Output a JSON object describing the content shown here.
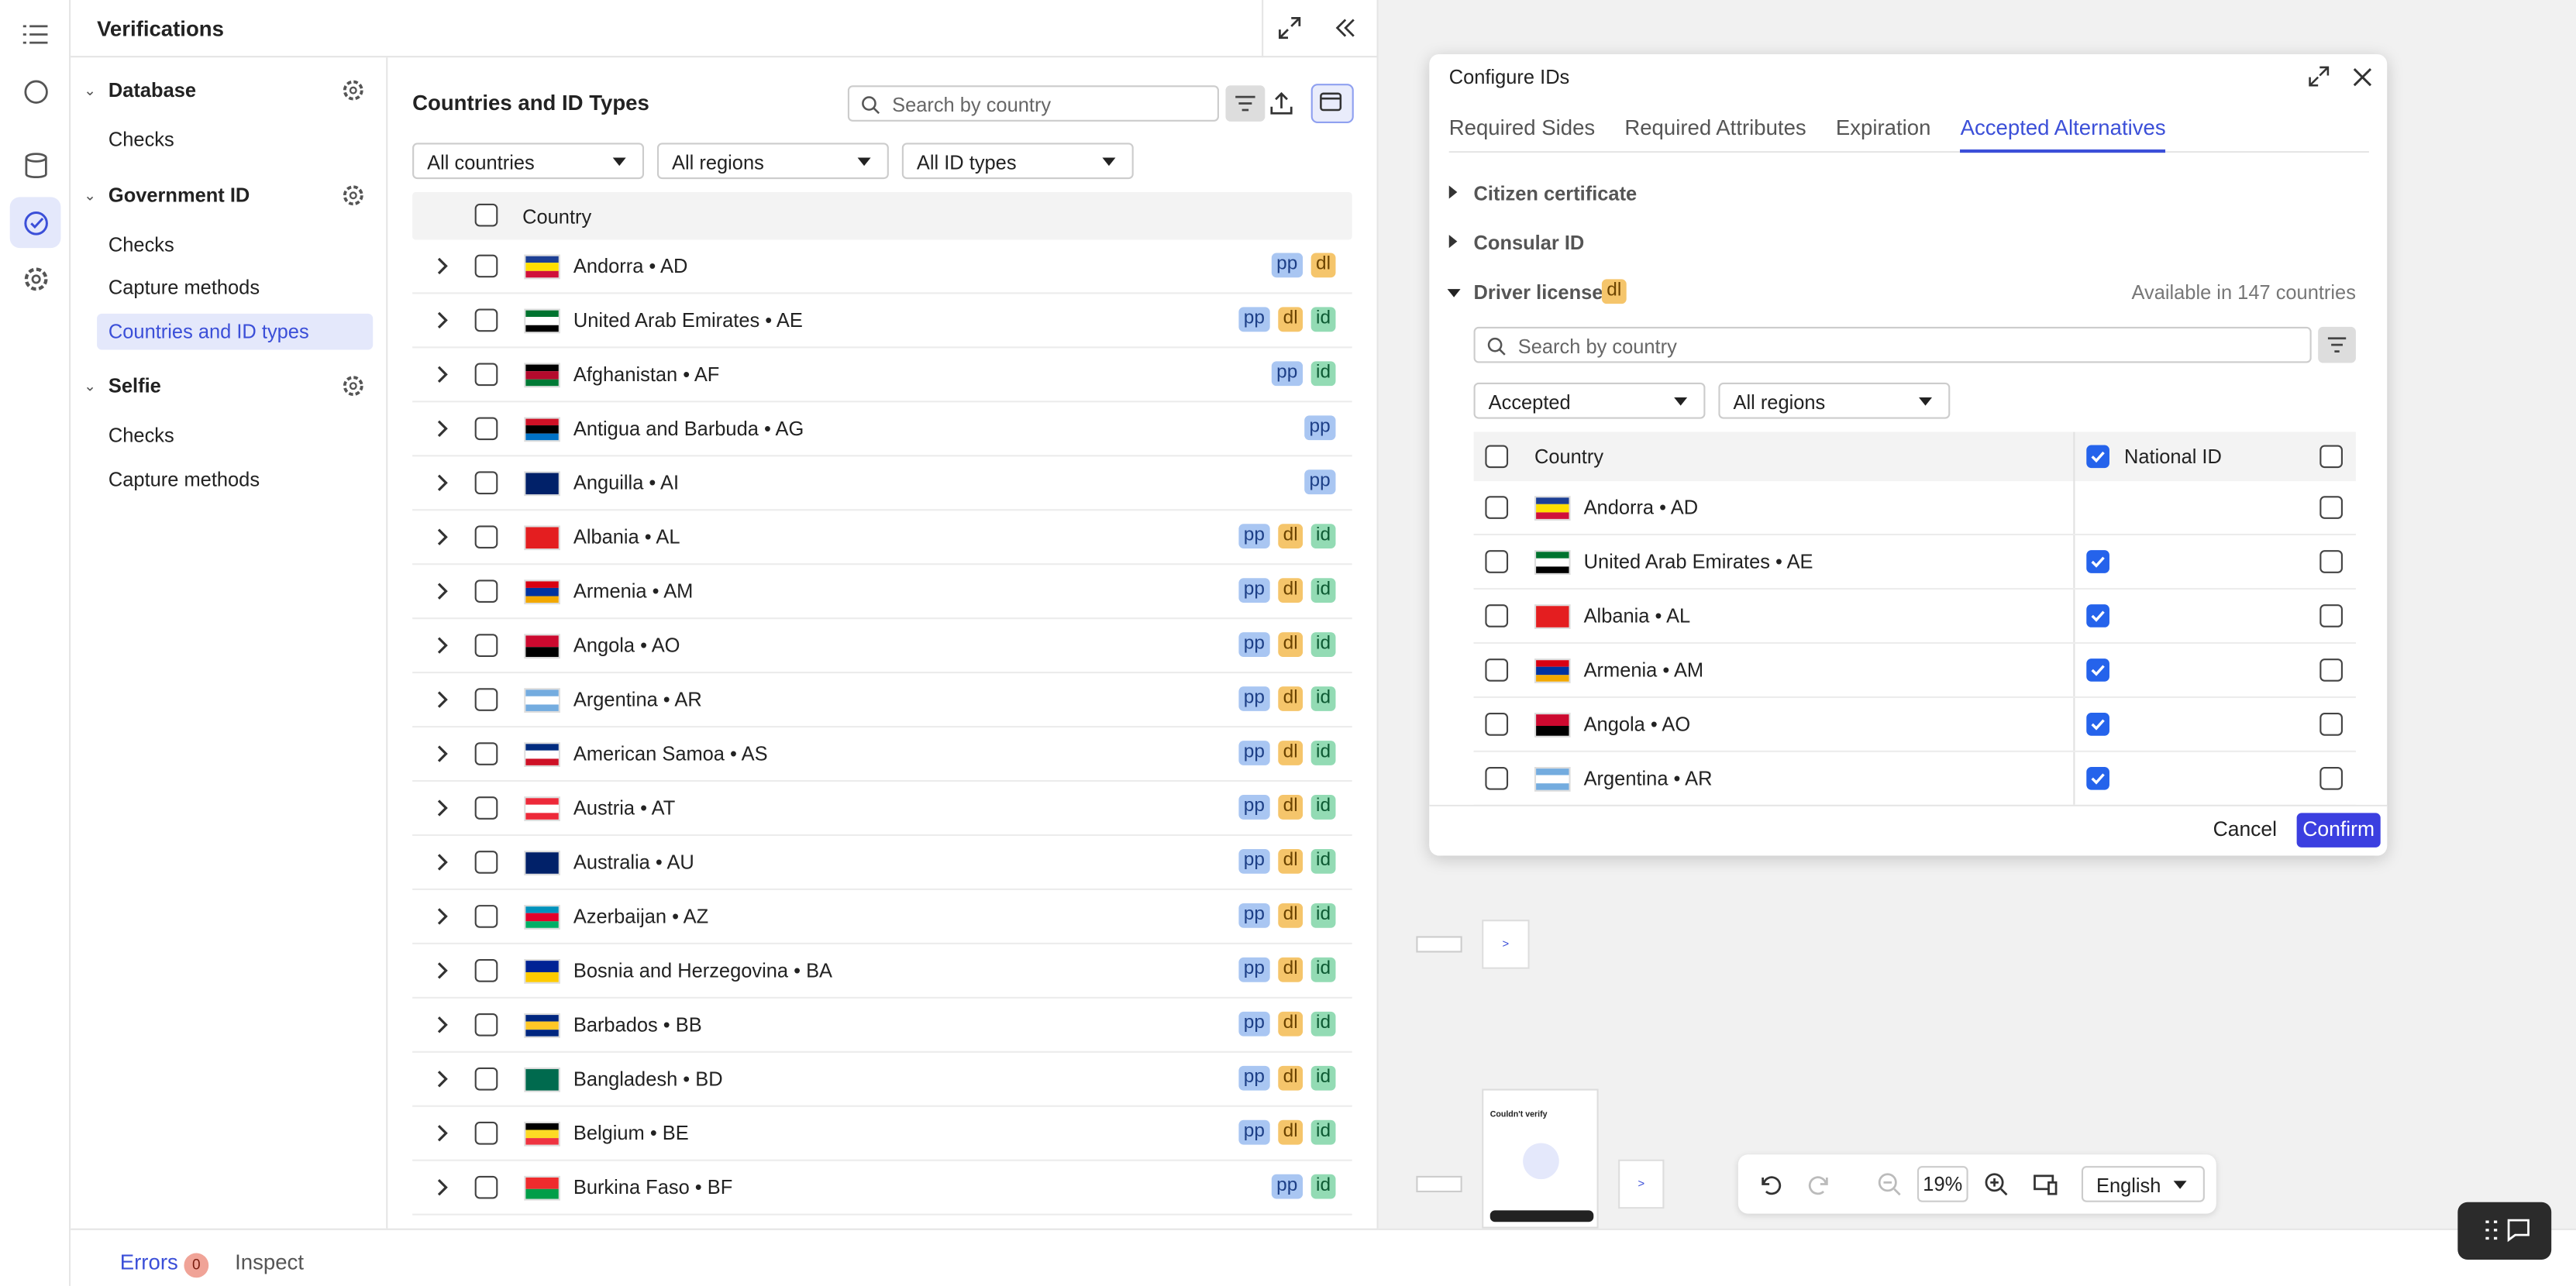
{
  "panel": {
    "title": "Verifications",
    "sections": [
      {
        "title": "Database",
        "items": [
          {
            "label": "Checks"
          }
        ]
      },
      {
        "title": "Government ID",
        "items": [
          {
            "label": "Checks"
          },
          {
            "label": "Capture methods"
          },
          {
            "label": "Countries and ID types",
            "active": true
          }
        ]
      },
      {
        "title": "Selfie",
        "items": [
          {
            "label": "Checks"
          },
          {
            "label": "Capture methods"
          }
        ]
      }
    ]
  },
  "table": {
    "title": "Countries and ID Types",
    "search_placeholder": "Search by country",
    "filters": [
      "All countries",
      "All regions",
      "All ID types"
    ],
    "header": "Country",
    "rows": [
      {
        "country": "Andorra • AD",
        "tags": [
          "pp",
          "dl"
        ],
        "flag": [
          "#1c3f94",
          "#fedf00",
          "#d0103a"
        ]
      },
      {
        "country": "United Arab Emirates • AE",
        "tags": [
          "pp",
          "dl",
          "id"
        ],
        "flag": [
          "#00732f",
          "#ffffff",
          "#000000"
        ]
      },
      {
        "country": "Afghanistan • AF",
        "tags": [
          "pp",
          "id"
        ],
        "flag": [
          "#000000",
          "#b40a2d",
          "#007a36"
        ]
      },
      {
        "country": "Antigua and Barbuda • AG",
        "tags": [
          "pp"
        ],
        "flag": [
          "#ce1126",
          "#000000",
          "#0072c6"
        ]
      },
      {
        "country": "Anguilla • AI",
        "tags": [
          "pp"
        ],
        "flag": [
          "#012169"
        ]
      },
      {
        "country": "Albania • AL",
        "tags": [
          "pp",
          "dl",
          "id"
        ],
        "flag": [
          "#e41e20"
        ]
      },
      {
        "country": "Armenia • AM",
        "tags": [
          "pp",
          "dl",
          "id"
        ],
        "flag": [
          "#d90012",
          "#0033a0",
          "#f2a800"
        ]
      },
      {
        "country": "Angola • AO",
        "tags": [
          "pp",
          "dl",
          "id"
        ],
        "flag": [
          "#cc092f",
          "#000000"
        ]
      },
      {
        "country": "Argentina • AR",
        "tags": [
          "pp",
          "dl",
          "id"
        ],
        "flag": [
          "#74acdf",
          "#ffffff",
          "#74acdf"
        ]
      },
      {
        "country": "American Samoa • AS",
        "tags": [
          "pp",
          "dl",
          "id"
        ],
        "flag": [
          "#002b7f",
          "#ffffff",
          "#ce1126"
        ]
      },
      {
        "country": "Austria • AT",
        "tags": [
          "pp",
          "dl",
          "id"
        ],
        "flag": [
          "#ed2939",
          "#ffffff",
          "#ed2939"
        ]
      },
      {
        "country": "Australia • AU",
        "tags": [
          "pp",
          "dl",
          "id"
        ],
        "flag": [
          "#012169"
        ]
      },
      {
        "country": "Azerbaijan • AZ",
        "tags": [
          "pp",
          "dl",
          "id"
        ],
        "flag": [
          "#0092bc",
          "#e4002b",
          "#00af66"
        ]
      },
      {
        "country": "Bosnia and Herzegovina • BA",
        "tags": [
          "pp",
          "dl",
          "id"
        ],
        "flag": [
          "#002395",
          "#fecb00"
        ]
      },
      {
        "country": "Barbados • BB",
        "tags": [
          "pp",
          "dl",
          "id"
        ],
        "flag": [
          "#00267f",
          "#ffc726",
          "#00267f"
        ]
      },
      {
        "country": "Bangladesh • BD",
        "tags": [
          "pp",
          "dl",
          "id"
        ],
        "flag": [
          "#006a4e"
        ]
      },
      {
        "country": "Belgium • BE",
        "tags": [
          "pp",
          "dl",
          "id"
        ],
        "flag": [
          "#000000",
          "#fdda24",
          "#ef3340"
        ]
      },
      {
        "country": "Burkina Faso • BF",
        "tags": [
          "pp",
          "id"
        ],
        "flag": [
          "#ef2b2d",
          "#009e49"
        ]
      }
    ]
  },
  "modal": {
    "title": "Configure IDs",
    "tabs": [
      "Required Sides",
      "Required Attributes",
      "Expiration",
      "Accepted Alternatives"
    ],
    "active_tab": 3,
    "sections": [
      "Citizen certificate",
      "Consular ID"
    ],
    "open_section": {
      "name": "Driver license",
      "tag": "dl",
      "availability": "Available in 147 countries",
      "search_placeholder": "Search by country",
      "filters": [
        "Accepted",
        "All regions"
      ],
      "columns": [
        {
          "label": "Country",
          "checked": false
        },
        {
          "label": "National ID",
          "checked": true
        }
      ],
      "rows": [
        {
          "country": "Andorra • AD",
          "national_id": null,
          "flag": [
            "#1c3f94",
            "#fedf00",
            "#d0103a"
          ]
        },
        {
          "country": "United Arab Emirates • AE",
          "national_id": true,
          "flag": [
            "#00732f",
            "#ffffff",
            "#000000"
          ]
        },
        {
          "country": "Albania • AL",
          "national_id": true,
          "flag": [
            "#e41e20"
          ]
        },
        {
          "country": "Armenia • AM",
          "national_id": true,
          "flag": [
            "#d90012",
            "#0033a0",
            "#f2a800"
          ]
        },
        {
          "country": "Angola • AO",
          "national_id": true,
          "flag": [
            "#cc092f",
            "#000000"
          ]
        },
        {
          "country": "Argentina • AR",
          "national_id": true,
          "flag": [
            "#74acdf",
            "#ffffff",
            "#74acdf"
          ]
        }
      ]
    },
    "buttons": [
      "Cancel",
      "Confirm"
    ]
  },
  "canvas": {
    "card_title": "Couldn't verify",
    "zoom": "19%",
    "language": "English"
  },
  "footer": {
    "tabs": [
      "Errors",
      "Inspect"
    ],
    "error_count": "0"
  }
}
